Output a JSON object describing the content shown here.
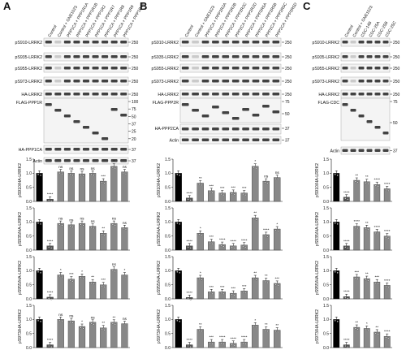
{
  "panels": [
    {
      "letter": "A",
      "lanes": [
        "Control",
        "Control + GNE1023",
        "PPP1CA + PPP1R1A",
        "PPP1CA + PPP1R1B",
        "PPP1CA + PPP1R2",
        "PPP1CA + PPP1R7",
        "PPP1CA + PPP1R8",
        "PPP1CA + PPP1R9",
        "PPP1CA + PPP1R48"
      ],
      "blots": [
        {
          "label": "pS910-LRRK2",
          "mw": "250"
        },
        {
          "label": "pS935-LRRK2",
          "mw": "250"
        },
        {
          "label": "pS955-LRRK2",
          "mw": "250"
        },
        {
          "label": "pS973-LRRK2",
          "mw": "250"
        },
        {
          "label": "HA-LRRK2",
          "mw": "250"
        },
        {
          "label": "FLAG-PPP1R",
          "mw": "100 75 50 37 25 20"
        },
        {
          "label": "HA-PPP1CA",
          "mw": "37"
        },
        {
          "label": "Actin",
          "mw": "37"
        }
      ],
      "ylabels": [
        "pS910/HA-LRRK2",
        "pS935/HA-LRRK2",
        "pS955/HA-LRRK2",
        "pS973/HA-LRRK2"
      ]
    },
    {
      "letter": "B",
      "lanes": [
        "Control",
        "Control + GNE1023",
        "PPP2CA + PPP2R2A",
        "PPP2CA + PPP2R2B",
        "PPP2CA + PPP2R2C",
        "PPP2CA + PPP2R2D",
        "PPP2CA + PPP2R5A",
        "PPP2CA + PPP2R5B",
        "PPP2CA + PPP2R5C",
        "PPP2CA + PPP2R5D"
      ],
      "blots": [
        {
          "label": "pS910-LRRK2",
          "mw": "250"
        },
        {
          "label": "pS935-LRRK2",
          "mw": "250"
        },
        {
          "label": "pS955-LRRK2",
          "mw": "250"
        },
        {
          "label": "pS973-LRRK2",
          "mw": "250"
        },
        {
          "label": "HA-LRRK2",
          "mw": "250"
        },
        {
          "label": "FLAG-PPP2R",
          "mw": "75 50"
        },
        {
          "label": "HA-PPP2CA",
          "mw": "37"
        },
        {
          "label": "Actin",
          "mw": "37"
        }
      ],
      "ylabels": [
        "pS910/HA-LRRK2",
        "pS935/HA-LRRK2",
        "pS955/HA-LRRK2",
        "pS973/HA-LRRK2"
      ]
    },
    {
      "letter": "C",
      "lanes": [
        "Control",
        "Control + GNE1023",
        "CDC-14B",
        "CDC-25A",
        "CDC-25B",
        "CDC-25C"
      ],
      "blots": [
        {
          "label": "pS910-LRRK2",
          "mw": "250"
        },
        {
          "label": "pS935-LRRK2",
          "mw": "250"
        },
        {
          "label": "pS955-LRRK2",
          "mw": "250"
        },
        {
          "label": "pS973-LRRK2",
          "mw": "250"
        },
        {
          "label": "HA-LRRK2",
          "mw": "250"
        },
        {
          "label": "FLAG-CDC",
          "mw": "75 50"
        },
        {
          "label": "Actin",
          "mw": "37"
        }
      ],
      "ylabels": [
        "pS910/HA-LRRK2",
        "pS935/HA-LRRK2",
        "pS955/HA-LRRK2",
        "pS973/HA-LRRK2"
      ]
    }
  ],
  "chart_data": [
    {
      "type": "bar",
      "panel": "A",
      "ylabel": "pS910/HA-LRRK2",
      "ylim": [
        0,
        1.5
      ],
      "ticks": [
        "0.0",
        "0.5",
        "1.0",
        "1.5"
      ],
      "values": [
        1.0,
        0.08,
        1.05,
        1.0,
        0.98,
        1.0,
        0.72,
        1.25,
        1.05
      ],
      "sig": [
        "",
        "****",
        "ns",
        "ns",
        "ns",
        "ns",
        "***",
        "*",
        "ns"
      ]
    },
    {
      "type": "bar",
      "panel": "A",
      "ylabel": "pS935/HA-LRRK2",
      "ylim": [
        0,
        1.5
      ],
      "ticks": [
        "0.0",
        "0.5",
        "1.0",
        "1.5"
      ],
      "values": [
        1.0,
        0.15,
        0.95,
        0.9,
        0.95,
        0.85,
        0.6,
        0.95,
        0.8
      ],
      "sig": [
        "",
        "****",
        "ns",
        "ns",
        "ns",
        "ns",
        "**",
        "ns",
        "ns"
      ]
    },
    {
      "type": "bar",
      "panel": "A",
      "ylabel": "pS955/HA-LRRK2",
      "ylim": [
        0,
        1.5
      ],
      "ticks": [
        "0.0",
        "0.5",
        "1.0",
        "1.5"
      ],
      "values": [
        1.0,
        0.06,
        0.85,
        0.7,
        0.8,
        0.6,
        0.5,
        1.05,
        0.85
      ],
      "sig": [
        "",
        "****",
        "*",
        "***",
        "*",
        "**",
        "***",
        "ns",
        "*"
      ]
    },
    {
      "type": "bar",
      "panel": "A",
      "ylabel": "pS973/HA-LRRK2",
      "ylim": [
        0,
        1.5
      ],
      "ticks": [
        "0.0",
        "0.5",
        "1.0",
        "1.5"
      ],
      "values": [
        1.0,
        0.1,
        1.0,
        0.95,
        0.75,
        0.9,
        0.7,
        0.9,
        0.85
      ],
      "sig": [
        "",
        "****",
        "ns",
        "ns",
        "*",
        "ns",
        "**",
        "**",
        "ns"
      ]
    },
    {
      "type": "bar",
      "panel": "B",
      "ylabel": "pS910/HA-LRRK2",
      "ylim": [
        0,
        1.5
      ],
      "ticks": [
        "0.0",
        "0.5",
        "1.0",
        "1.5"
      ],
      "values": [
        1.0,
        0.12,
        0.65,
        0.38,
        0.3,
        0.32,
        0.3,
        1.25,
        0.72,
        0.85
      ],
      "sig": [
        "",
        "****",
        "**",
        "***",
        "***",
        "***",
        "***",
        "*",
        "ns",
        "ns"
      ]
    },
    {
      "type": "bar",
      "panel": "B",
      "ylabel": "pS935/HA-LRRK2",
      "ylim": [
        0,
        1.5
      ],
      "ticks": [
        "0.0",
        "0.5",
        "1.0",
        "1.5"
      ],
      "values": [
        1.0,
        0.15,
        0.6,
        0.3,
        0.2,
        0.15,
        0.18,
        1.15,
        0.55,
        0.75
      ],
      "sig": [
        "",
        "****",
        "*",
        "***",
        "****",
        "****",
        "****",
        "**",
        "****",
        "*"
      ]
    },
    {
      "type": "bar",
      "panel": "B",
      "ylabel": "pS955/HA-LRRK2",
      "ylim": [
        0,
        1.5
      ],
      "ticks": [
        "0.0",
        "0.5",
        "1.0",
        "1.5"
      ],
      "values": [
        1.0,
        0.05,
        0.75,
        0.25,
        0.25,
        0.2,
        0.28,
        0.75,
        0.65,
        0.55
      ],
      "sig": [
        "",
        "****",
        "*",
        "***",
        "***",
        "***",
        "***",
        "**",
        "**",
        "***"
      ]
    },
    {
      "type": "bar",
      "panel": "B",
      "ylabel": "pS973/HA-LRRK2",
      "ylim": [
        0,
        1.5
      ],
      "ticks": [
        "0.0",
        "0.5",
        "1.0",
        "1.5"
      ],
      "values": [
        1.0,
        0.1,
        0.65,
        0.2,
        0.2,
        0.15,
        0.2,
        0.8,
        0.65,
        0.62
      ],
      "sig": [
        "",
        "****",
        "**",
        "***",
        "****",
        "****",
        "****",
        "*",
        "**",
        "**"
      ]
    },
    {
      "type": "bar",
      "panel": "C",
      "ylabel": "pS910/HA-LRRK2",
      "ylim": [
        0,
        1.5
      ],
      "ticks": [
        "0.0",
        "0.5",
        "1.0",
        "1.5"
      ],
      "values": [
        1.0,
        0.15,
        0.75,
        0.7,
        0.6,
        0.45
      ],
      "sig": [
        "",
        "****",
        "**",
        "**",
        "****",
        "****"
      ]
    },
    {
      "type": "bar",
      "panel": "C",
      "ylabel": "pS935/HA-LRRK2",
      "ylim": [
        0,
        1.5
      ],
      "ticks": [
        "0.0",
        "0.5",
        "1.0",
        "1.5"
      ],
      "values": [
        1.0,
        0.15,
        0.85,
        0.8,
        0.65,
        0.5
      ],
      "sig": [
        "",
        "****",
        "****",
        "**",
        "****",
        "****"
      ]
    },
    {
      "type": "bar",
      "panel": "C",
      "ylabel": "pS955/HA-LRRK2",
      "ylim": [
        0,
        1.5
      ],
      "ticks": [
        "0.0",
        "0.5",
        "1.0",
        "1.5"
      ],
      "values": [
        1.0,
        0.08,
        0.78,
        0.72,
        0.6,
        0.48
      ],
      "sig": [
        "",
        "****",
        "***",
        "**",
        "***",
        "****"
      ]
    },
    {
      "type": "bar",
      "panel": "C",
      "ylabel": "pS973/HA-LRRK2",
      "ylim": [
        0,
        1.5
      ],
      "ticks": [
        "0.0",
        "0.5",
        "1.0",
        "1.5"
      ],
      "values": [
        1.0,
        0.1,
        0.72,
        0.68,
        0.55,
        0.4
      ],
      "sig": [
        "",
        "****",
        "**",
        "*",
        "**",
        "****"
      ]
    }
  ]
}
